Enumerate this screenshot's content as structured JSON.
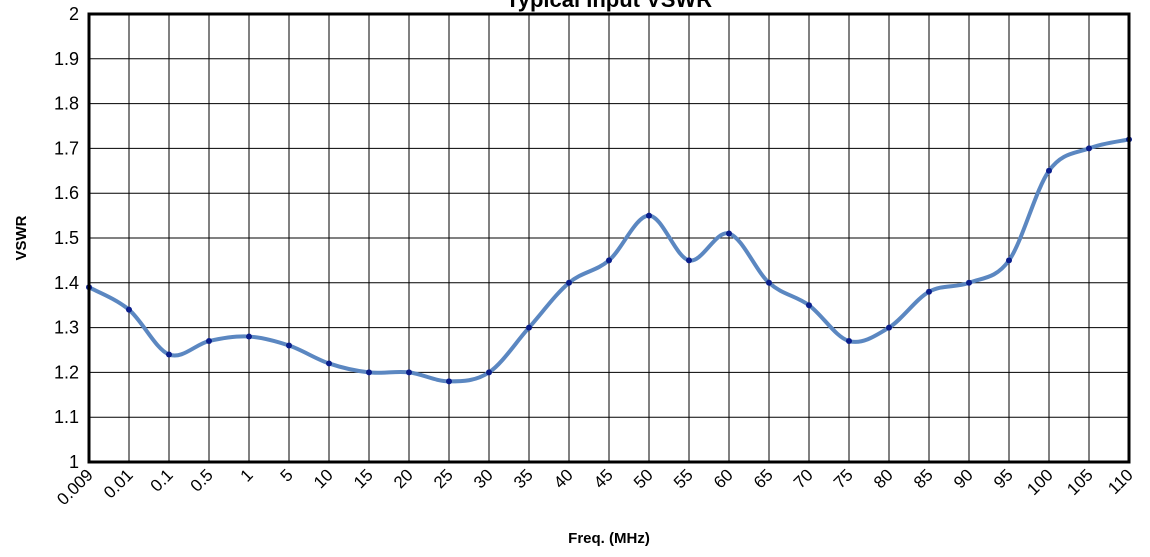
{
  "chart_data": {
    "type": "line",
    "title": "Typical Input VSWR",
    "xlabel": "Freq. (MHz)",
    "ylabel": "VSWR",
    "categories": [
      "0.009",
      "0.01",
      "0.1",
      "0.5",
      "1",
      "5",
      "10",
      "15",
      "20",
      "25",
      "30",
      "35",
      "40",
      "45",
      "50",
      "55",
      "60",
      "65",
      "70",
      "75",
      "80",
      "85",
      "90",
      "95",
      "100",
      "105",
      "110"
    ],
    "series": [
      {
        "values": [
          1.39,
          1.34,
          1.24,
          1.27,
          1.28,
          1.26,
          1.22,
          1.2,
          1.2,
          1.18,
          1.2,
          1.3,
          1.4,
          1.45,
          1.55,
          1.45,
          1.51,
          1.4,
          1.35,
          1.27,
          1.3,
          1.38,
          1.4,
          1.45,
          1.65,
          1.7,
          1.72
        ],
        "color": "#5b87c1",
        "marker_color": "#0a1e8c"
      }
    ],
    "ylim": [
      1,
      2
    ],
    "yticks": [
      "1",
      "1.1",
      "1.2",
      "1.3",
      "1.4",
      "1.5",
      "1.6",
      "1.7",
      "1.8",
      "1.9",
      "2"
    ],
    "grid": true,
    "legend": "none"
  }
}
